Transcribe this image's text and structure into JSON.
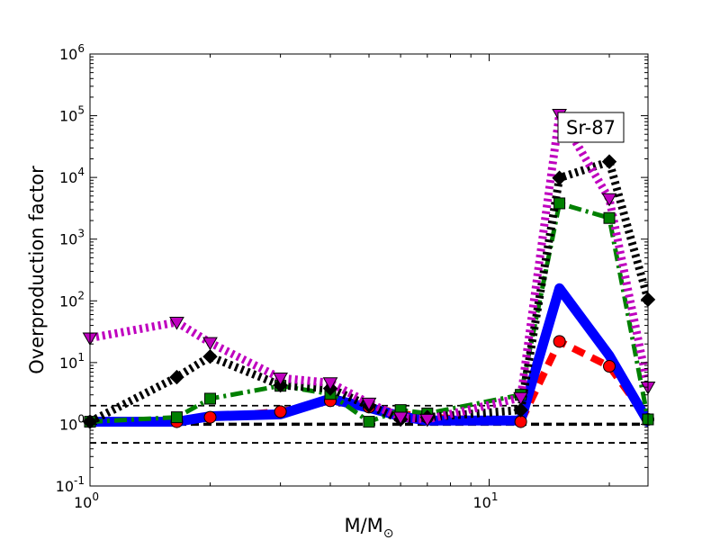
{
  "chart_data": {
    "type": "line",
    "x_scale": "log",
    "y_scale": "log",
    "xlim": [
      1,
      25
    ],
    "ylim": [
      0.1,
      1000000
    ],
    "xlabel": "M/M",
    "xlabel_sub": "⊙",
    "ylabel": "Overproduction factor",
    "annotation": "Sr-87",
    "annotation_position": "top-right",
    "x_ticks": [
      {
        "value": 1,
        "base": "10",
        "exp": "0"
      },
      {
        "value": 10,
        "base": "10",
        "exp": "1"
      }
    ],
    "y_ticks": [
      {
        "value": 0.1,
        "base": "10",
        "exp": "-1"
      },
      {
        "value": 1,
        "base": "10",
        "exp": "0"
      },
      {
        "value": 10,
        "base": "10",
        "exp": "1"
      },
      {
        "value": 100,
        "base": "10",
        "exp": "2"
      },
      {
        "value": 1000,
        "base": "10",
        "exp": "3"
      },
      {
        "value": 10000,
        "base": "10",
        "exp": "4"
      },
      {
        "value": 100000,
        "base": "10",
        "exp": "5"
      },
      {
        "value": 1000000,
        "base": "10",
        "exp": "6"
      }
    ],
    "reference_lines": [
      {
        "y": 2,
        "style": "dashed",
        "width": "thin"
      },
      {
        "y": 1,
        "style": "dashed",
        "width": "thick"
      },
      {
        "y": 0.5,
        "style": "dashed",
        "width": "thin"
      }
    ],
    "series": [
      {
        "color": "#ff0000",
        "dash": "dashed",
        "marker": "circle",
        "x": [
          1,
          1.65,
          2,
          3,
          4,
          5,
          6,
          7,
          12,
          15,
          20,
          25
        ],
        "y": [
          1.1,
          1.1,
          1.3,
          1.6,
          2.4,
          1.9,
          1.5,
          1.3,
          1.1,
          22,
          8.7,
          1.2
        ]
      },
      {
        "color": "#0000ff",
        "dash": "solid",
        "marker": "none",
        "x": [
          1,
          1.65,
          2,
          3,
          4,
          5,
          6,
          7,
          12,
          15,
          20,
          25
        ],
        "y": [
          1.1,
          1.1,
          1.35,
          1.45,
          2.6,
          1.85,
          1.35,
          1.15,
          1.15,
          160,
          13,
          1.1
        ]
      },
      {
        "color": "#008000",
        "dash": "dashdot",
        "marker": "square",
        "x": [
          1,
          1.65,
          2,
          3,
          4,
          5,
          6,
          7,
          12,
          15,
          20,
          25
        ],
        "y": [
          1.1,
          1.3,
          2.6,
          4.2,
          3.1,
          1.1,
          1.7,
          1.5,
          3.0,
          3800,
          2200,
          1.2
        ]
      },
      {
        "color": "#000000",
        "dash": "dotted",
        "marker": "diamond",
        "x": [
          1,
          1.65,
          2,
          3,
          4,
          5,
          6,
          7,
          12,
          15,
          20,
          25
        ],
        "y": [
          1.1,
          5.8,
          12.5,
          4.3,
          3.8,
          2.0,
          1.2,
          1.3,
          1.7,
          9800,
          18000,
          105
        ]
      },
      {
        "color": "#bf00bf",
        "dash": "dotted",
        "marker": "triangle-down",
        "x": [
          1,
          1.65,
          2,
          3,
          4,
          5,
          6,
          7,
          12,
          15,
          20,
          25
        ],
        "y": [
          25,
          45,
          21,
          5.6,
          4.7,
          2.2,
          1.3,
          1.2,
          2.7,
          105000,
          4500,
          4.0
        ]
      }
    ]
  }
}
